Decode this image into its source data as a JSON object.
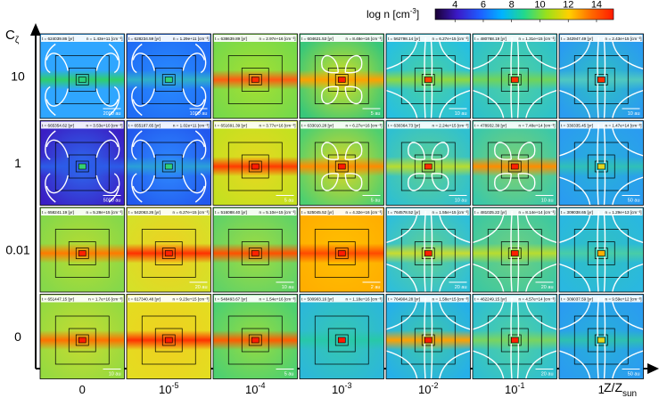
{
  "colorbar": {
    "label": "log n [cm",
    "label_sup": "-3",
    "label_end": "]",
    "ticks": [
      "4",
      "6",
      "8",
      "10",
      "12",
      "14"
    ],
    "colors": [
      "#1a0033",
      "#3b1ac8",
      "#1f5cff",
      "#00b3ff",
      "#22d98c",
      "#9be01a",
      "#ffd000",
      "#ff6a00",
      "#ff1a00"
    ]
  },
  "y_axis": {
    "symbol": "C",
    "sub": "ζ",
    "rows": [
      "10",
      "1",
      "0.01",
      "0"
    ]
  },
  "x_axis": {
    "label": "Z/Z",
    "label_sub": "sun",
    "columns": [
      "0",
      "10",
      "10",
      "10",
      "10",
      "10",
      "1"
    ],
    "column_sup": [
      "",
      "-5",
      "-4",
      "-3",
      "-2",
      "-1",
      ""
    ]
  },
  "panels": [
    [
      {
        "t": "t = 624039.86 [yr]",
        "n": "n = 1.43e+11 [cm⁻³]",
        "scale": "2000 au",
        "c": "#2fa6ff",
        "s": "#2fd06a",
        "x": "#2fa6ff",
        "k": "#2bcf7a",
        "cont": 1
      },
      {
        "t": "t = 628234.59 [yr]",
        "n": "n = 1.29e+11 [cm⁻³]",
        "scale": "1000 au",
        "c": "#1f6cf5",
        "s": "#2fb0c8",
        "x": "#2a8cff",
        "k": "#30d07a",
        "cont": 1
      },
      {
        "t": "t = 638639.89 [yr]",
        "n": "n = 2.97e+16 [cm⁻³]",
        "scale": "",
        "c": "#77d94a",
        "s": "#ff5a10",
        "x": "#a8e030",
        "k": "#ff2a00",
        "cont": 0
      },
      {
        "t": "t = 604621.53 [yr]",
        "n": "n = 8.48e+16 [cm⁻³]",
        "scale": "5 au",
        "c": "#38c77a",
        "s": "#ffa000",
        "x": "#d8e020",
        "k": "#ff2000",
        "cont": 2
      },
      {
        "t": "t = 562798.14 [yr]",
        "n": "n = 6.27e+15 [cm⁻³]",
        "scale": "10 au",
        "c": "#27c0e0",
        "s": "#8fd840",
        "x": "#4ad0a0",
        "k": "#ff4000",
        "cont": 3
      },
      {
        "t": "t = 480768.19 [yr]",
        "n": "n = 1.31e+15 [cm⁻³]",
        "scale": "",
        "c": "#2fc2c8",
        "s": "#70d45a",
        "x": "#50d0a0",
        "k": "#ff3000",
        "cont": 3
      },
      {
        "t": "t = 342947.49 [yr]",
        "n": "n = 2.43e+15 [cm⁻³]",
        "scale": "10 au",
        "c": "#2a9cf0",
        "s": "#50c8c0",
        "x": "#30c0c0",
        "k": "#ff3000",
        "cont": 3
      }
    ],
    [
      {
        "t": "t = 665354.62 [yr]",
        "n": "n = 3.53e+10 [cm⁻³]",
        "scale": "5000 au",
        "c": "#3a1fc4",
        "s": "#2c5ce8",
        "x": "#2d6df0",
        "k": "#35d070",
        "cont": 1
      },
      {
        "t": "t = 655187.65 [yr]",
        "n": "n = 1.02e+11 [cm⁻³]",
        "scale": "",
        "c": "#2258ee",
        "s": "#2aa0d8",
        "x": "#2f8cff",
        "k": "#30d07a",
        "cont": 1
      },
      {
        "t": "t = 651691.39 [yr]",
        "n": "n = 3.77e+16 [cm⁻³]",
        "scale": "5 au",
        "c": "#c4e020",
        "s": "#ff3a00",
        "x": "#e8d820",
        "k": "#ff1a00",
        "cont": 0
      },
      {
        "t": "t = 633010.28 [yr]",
        "n": "n = 6.27e+16 [cm⁻³]",
        "scale": "5 au",
        "c": "#4ecf70",
        "s": "#ff8a00",
        "x": "#e0d820",
        "k": "#ff1a00",
        "cont": 2
      },
      {
        "t": "t = 630364.73 [yr]",
        "n": "n = 2.24e+15 [cm⁻³]",
        "scale": "10 au",
        "c": "#2fc0d0",
        "s": "#b8dc30",
        "x": "#60d090",
        "k": "#ff3000",
        "cont": 2
      },
      {
        "t": "t = 478932.39 [yr]",
        "n": "n = 7.48e+14 [cm⁻³]",
        "scale": "10 au",
        "c": "#3cc8a8",
        "s": "#ff8c00",
        "x": "#80d070",
        "k": "#ff2000",
        "cont": 2
      },
      {
        "t": "t = 330335.45 [yr]",
        "n": "n = 1.47e+14 [cm⁻³]",
        "scale": "50 au",
        "c": "#2a9cf0",
        "s": "#30c0b8",
        "x": "#28b0d8",
        "k": "#e0d820",
        "cont": 3
      }
    ],
    [
      {
        "t": "t = 658241.19 [yr]",
        "n": "n = 5.28e+15 [cm⁻³]",
        "scale": "",
        "c": "#86d84a",
        "s": "#ff7a00",
        "x": "#b8dc30",
        "k": "#ff2000",
        "cont": 0
      },
      {
        "t": "t = 542063.26 [yr]",
        "n": "n = 6.27e+15 [cm⁻³]",
        "scale": "20 au",
        "c": "#d6e028",
        "s": "#ff3000",
        "x": "#f0d020",
        "k": "#ff2000",
        "cont": 0
      },
      {
        "t": "t = 516088.40 [yr]",
        "n": "n = 5.10e+15 [cm⁻³]",
        "scale": "10 au",
        "c": "#62d266",
        "s": "#ff5000",
        "x": "#a0dc40",
        "k": "#ff2000",
        "cont": 0
      },
      {
        "t": "t = 525045.52 [yr]",
        "n": "n = 4.32e+16 [cm⁻³]",
        "scale": "2 au",
        "c": "#ffae00",
        "s": "#ff4a00",
        "x": "#ffc000",
        "k": "#ff1a00",
        "cont": 0
      },
      {
        "t": "t = 764578.52 [yr]",
        "n": "n = 1.55e+15 [cm⁻³]",
        "scale": "20 au",
        "c": "#2fbfd8",
        "s": "#c8dc30",
        "x": "#60d090",
        "k": "#ff2000",
        "cont": 3
      },
      {
        "t": "t = 481025.22 [yr]",
        "n": "n = 8.14e+14 [cm⁻³]",
        "scale": "20 au",
        "c": "#3ec8a0",
        "s": "#b8dc30",
        "x": "#70d080",
        "k": "#ff2000",
        "cont": 3
      },
      {
        "t": "t = 309038.65 [yr]",
        "n": "n = 1.29e+13 [cm⁻³]",
        "scale": "",
        "c": "#2ab8e0",
        "s": "#48cca8",
        "x": "#30c0c0",
        "k": "#ffb000",
        "cont": 3
      }
    ],
    [
      {
        "t": "t = 651447.15 [yr]",
        "n": "n = 1.7e+16 [cm⁻³]",
        "scale": "10 au",
        "c": "#96da40",
        "s": "#ff7000",
        "x": "#c8dc30",
        "k": "#ff1a00",
        "cont": 0
      },
      {
        "t": "t = 617340.48 [yr]",
        "n": "n = 9.23e+15 [cm⁻³]",
        "scale": "",
        "c": "#e4dc20",
        "s": "#ff3000",
        "x": "#f0d020",
        "k": "#ff1a00",
        "cont": 0
      },
      {
        "t": "t = 548493.67 [yr]",
        "n": "n = 1.54e+16 [cm⁻³]",
        "scale": "5 au",
        "c": "#4ed070",
        "s": "#ff5a00",
        "x": "#98dc40",
        "k": "#ff1a00",
        "cont": 0
      },
      {
        "t": "t = 500903.16 [yr]",
        "n": "n = 1.18e+16 [cm⁻³]",
        "scale": "",
        "c": "#2cb8d8",
        "s": "#28c8a8",
        "x": "#36c8b0",
        "k": "#ff1a00",
        "cont": 0
      },
      {
        "t": "t = 764904.28 [yr]",
        "n": "n = 1.58e+15 [cm⁻³]",
        "scale": "",
        "c": "#26b0e8",
        "s": "#ffa000",
        "x": "#40c8a8",
        "k": "#ff1a00",
        "cont": 3
      },
      {
        "t": "t = 462249.15 [yr]",
        "n": "n = 4.57e+14 [cm⁻³]",
        "scale": "20 au",
        "c": "#2fbfd0",
        "s": "#7ad460",
        "x": "#50d0a0",
        "k": "#ff2000",
        "cont": 3
      },
      {
        "t": "t = 309037.59 [yr]",
        "n": "n = 9.59e+12 [cm⁻³]",
        "scale": "50 au",
        "c": "#2a9cf0",
        "s": "#2fc0b0",
        "x": "#28b0d8",
        "k": "#e0d820",
        "cont": 3
      }
    ]
  ]
}
